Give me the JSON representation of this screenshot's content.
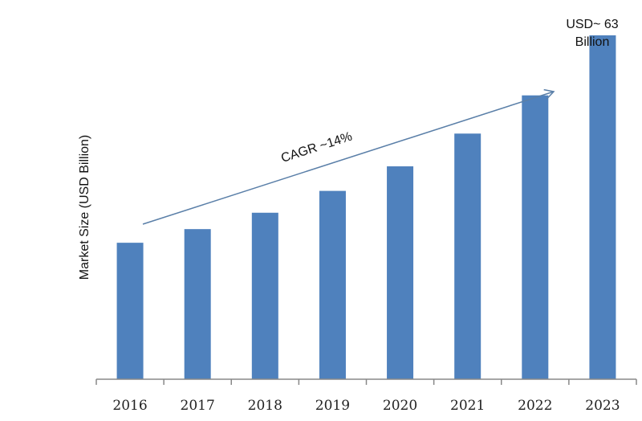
{
  "chart_data": {
    "type": "bar",
    "title": "",
    "xlabel": "",
    "ylabel": "Market Size (USD Billion)",
    "categories": [
      "2016",
      "2017",
      "2018",
      "2019",
      "2020",
      "2021",
      "2022",
      "2023"
    ],
    "values": [
      25,
      27.5,
      30.5,
      34.5,
      39,
      45,
      52,
      63
    ],
    "ylim": [
      0,
      68
    ],
    "grid": false,
    "bar_color": "#4f81bd",
    "annotations": {
      "cagr_text": "CAGR ~14%",
      "callout_line1": "USD~ 63",
      "callout_line2": "Billion"
    }
  }
}
